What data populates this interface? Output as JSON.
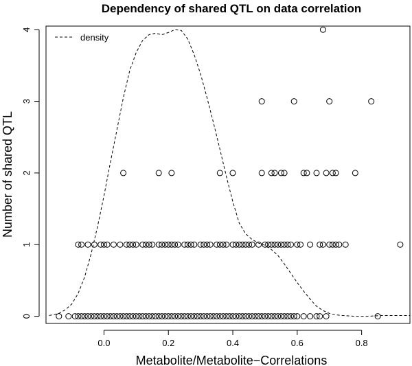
{
  "chart_data": {
    "type": "scatter",
    "title": "Dependency of shared QTL on data correlation",
    "xlabel": "Metabolite/Metabolite−Correlations",
    "ylabel": "Number of shared QTL",
    "xlim": [
      -0.18,
      0.95
    ],
    "ylim": [
      -0.1,
      4.05
    ],
    "x_ticks": [
      0.0,
      0.2,
      0.4,
      0.6,
      0.8
    ],
    "x_tick_labels": [
      "0.0",
      "0.2",
      "0.4",
      "0.6",
      "0.8"
    ],
    "y_ticks": [
      0,
      1,
      2,
      3,
      4
    ],
    "y_tick_labels": [
      "0",
      "1",
      "2",
      "3",
      "4"
    ],
    "legend": {
      "position": "top-left",
      "entries": [
        {
          "label": "density",
          "style": "dashed"
        }
      ]
    },
    "series": [
      {
        "name": "shared QTL",
        "kind": "points",
        "x": [
          -0.14,
          -0.11,
          -0.09,
          -0.08,
          -0.07,
          -0.06,
          -0.05,
          -0.04,
          -0.03,
          -0.02,
          -0.01,
          0.0,
          0.01,
          0.02,
          0.03,
          0.04,
          0.05,
          0.06,
          0.07,
          0.08,
          0.09,
          0.1,
          0.11,
          0.12,
          0.13,
          0.14,
          0.15,
          0.16,
          0.17,
          0.18,
          0.19,
          0.2,
          0.21,
          0.22,
          0.23,
          0.24,
          0.25,
          0.26,
          0.27,
          0.28,
          0.29,
          0.3,
          0.31,
          0.32,
          0.33,
          0.34,
          0.35,
          0.36,
          0.37,
          0.38,
          0.39,
          0.4,
          0.41,
          0.42,
          0.43,
          0.44,
          0.45,
          0.46,
          0.47,
          0.48,
          0.49,
          0.5,
          0.51,
          0.52,
          0.53,
          0.54,
          0.55,
          0.56,
          0.57,
          0.58,
          0.59,
          0.6,
          0.62,
          0.64,
          0.66,
          0.67,
          0.69,
          0.85,
          -0.08,
          -0.07,
          -0.05,
          -0.03,
          -0.01,
          0.0,
          0.01,
          0.03,
          0.05,
          0.07,
          0.08,
          0.09,
          0.1,
          0.12,
          0.13,
          0.14,
          0.15,
          0.17,
          0.18,
          0.19,
          0.2,
          0.21,
          0.22,
          0.23,
          0.25,
          0.26,
          0.27,
          0.28,
          0.3,
          0.31,
          0.32,
          0.33,
          0.35,
          0.36,
          0.37,
          0.38,
          0.4,
          0.41,
          0.42,
          0.43,
          0.44,
          0.45,
          0.46,
          0.48,
          0.5,
          0.51,
          0.52,
          0.53,
          0.54,
          0.55,
          0.56,
          0.57,
          0.58,
          0.6,
          0.61,
          0.64,
          0.67,
          0.68,
          0.7,
          0.71,
          0.72,
          0.73,
          0.75,
          0.92,
          0.06,
          0.17,
          0.21,
          0.36,
          0.4,
          0.49,
          0.52,
          0.53,
          0.55,
          0.56,
          0.62,
          0.63,
          0.66,
          0.69,
          0.71,
          0.72,
          0.78,
          0.49,
          0.59,
          0.7,
          0.83,
          0.68
        ],
        "y": [
          0,
          0,
          0,
          0,
          0,
          0,
          0,
          0,
          0,
          0,
          0,
          0,
          0,
          0,
          0,
          0,
          0,
          0,
          0,
          0,
          0,
          0,
          0,
          0,
          0,
          0,
          0,
          0,
          0,
          0,
          0,
          0,
          0,
          0,
          0,
          0,
          0,
          0,
          0,
          0,
          0,
          0,
          0,
          0,
          0,
          0,
          0,
          0,
          0,
          0,
          0,
          0,
          0,
          0,
          0,
          0,
          0,
          0,
          0,
          0,
          0,
          0,
          0,
          0,
          0,
          0,
          0,
          0,
          0,
          0,
          0,
          0,
          0,
          0,
          0,
          0,
          0,
          0,
          1,
          1,
          1,
          1,
          1,
          1,
          1,
          1,
          1,
          1,
          1,
          1,
          1,
          1,
          1,
          1,
          1,
          1,
          1,
          1,
          1,
          1,
          1,
          1,
          1,
          1,
          1,
          1,
          1,
          1,
          1,
          1,
          1,
          1,
          1,
          1,
          1,
          1,
          1,
          1,
          1,
          1,
          1,
          1,
          1,
          1,
          1,
          1,
          1,
          1,
          1,
          1,
          1,
          1,
          1,
          1,
          1,
          1,
          1,
          1,
          1,
          1,
          1,
          1,
          2,
          2,
          2,
          2,
          2,
          2,
          2,
          2,
          2,
          2,
          2,
          2,
          2,
          2,
          2,
          2,
          2,
          3,
          3,
          3,
          3,
          4
        ]
      },
      {
        "name": "density",
        "kind": "line",
        "style": "dashed",
        "x": [
          -0.17,
          -0.14,
          -0.12,
          -0.1,
          -0.08,
          -0.06,
          -0.04,
          -0.02,
          0.0,
          0.02,
          0.04,
          0.06,
          0.08,
          0.1,
          0.12,
          0.14,
          0.16,
          0.18,
          0.2,
          0.22,
          0.24,
          0.26,
          0.28,
          0.3,
          0.32,
          0.34,
          0.36,
          0.38,
          0.4,
          0.42,
          0.44,
          0.46,
          0.48,
          0.5,
          0.52,
          0.54,
          0.56,
          0.58,
          0.6,
          0.62,
          0.64,
          0.66,
          0.68,
          0.7,
          0.72,
          0.74,
          0.78,
          0.82,
          0.86,
          0.9,
          0.95
        ],
        "y": [
          0.01,
          0.04,
          0.09,
          0.17,
          0.32,
          0.55,
          0.87,
          1.25,
          1.68,
          2.15,
          2.6,
          3.05,
          3.43,
          3.68,
          3.85,
          3.93,
          3.95,
          3.93,
          3.96,
          4.0,
          3.99,
          3.87,
          3.65,
          3.38,
          3.05,
          2.7,
          2.33,
          1.95,
          1.6,
          1.3,
          1.15,
          1.07,
          1.02,
          0.99,
          0.93,
          0.85,
          0.73,
          0.6,
          0.47,
          0.35,
          0.24,
          0.14,
          0.08,
          0.04,
          0.02,
          0.01,
          0.0,
          0.0,
          0.01,
          0.01,
          0.01
        ]
      }
    ]
  }
}
